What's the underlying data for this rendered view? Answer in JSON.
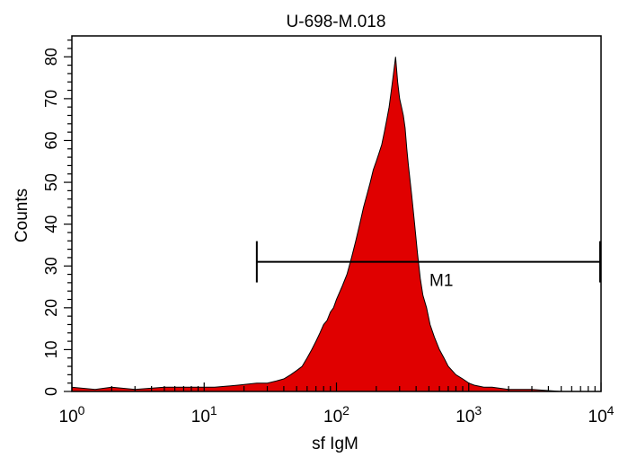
{
  "chart_data": {
    "type": "area",
    "title": "U-698-M.018",
    "xlabel": "sf IgM",
    "ylabel": "Counts",
    "x_scale": "log",
    "xlim": [
      1,
      10000
    ],
    "ylim": [
      0,
      85
    ],
    "x_ticks": [
      {
        "base": "10",
        "exp": "0",
        "value": 1
      },
      {
        "base": "10",
        "exp": "1",
        "value": 10
      },
      {
        "base": "10",
        "exp": "2",
        "value": 100
      },
      {
        "base": "10",
        "exp": "3",
        "value": 1000
      },
      {
        "base": "10",
        "exp": "4",
        "value": 10000
      }
    ],
    "y_ticks": [
      "0",
      "10",
      "20",
      "30",
      "40",
      "50",
      "60",
      "70",
      "80"
    ],
    "fill_color": "#e00000",
    "series": [
      {
        "x": [
          1,
          1.5,
          2,
          3,
          5,
          8,
          12,
          18,
          25,
          30,
          35,
          40,
          45,
          50,
          55,
          60,
          65,
          70,
          75,
          80,
          85,
          90,
          95,
          100,
          110,
          120,
          130,
          140,
          150,
          160,
          170,
          180,
          190,
          200,
          210,
          220,
          230,
          240,
          250,
          260,
          270,
          280,
          290,
          300,
          310,
          320,
          330,
          340,
          350,
          370,
          390,
          410,
          430,
          450,
          480,
          510,
          550,
          600,
          650,
          700,
          800,
          900,
          1000,
          1100,
          1300,
          1500,
          2000,
          3000,
          5000,
          10000
        ],
        "y": [
          1,
          0.5,
          1,
          0.5,
          1,
          1,
          1,
          1.5,
          2,
          2,
          2.5,
          3,
          4,
          5,
          6,
          8,
          10,
          12,
          14,
          16,
          17,
          19,
          20,
          22,
          25,
          28,
          32,
          36,
          40,
          44,
          47,
          50,
          53,
          55,
          57,
          59,
          62,
          65,
          68,
          72,
          76,
          80,
          74,
          70,
          68,
          66,
          63,
          58,
          54,
          47,
          40,
          33,
          27,
          23,
          20,
          16,
          13,
          10,
          8,
          6,
          4,
          3,
          2,
          1.5,
          1,
          1,
          0.5,
          0.5,
          0,
          0
        ]
      }
    ],
    "marker": {
      "label": "M1",
      "x_start": 25,
      "x_end": 10000,
      "y": 31
    }
  }
}
